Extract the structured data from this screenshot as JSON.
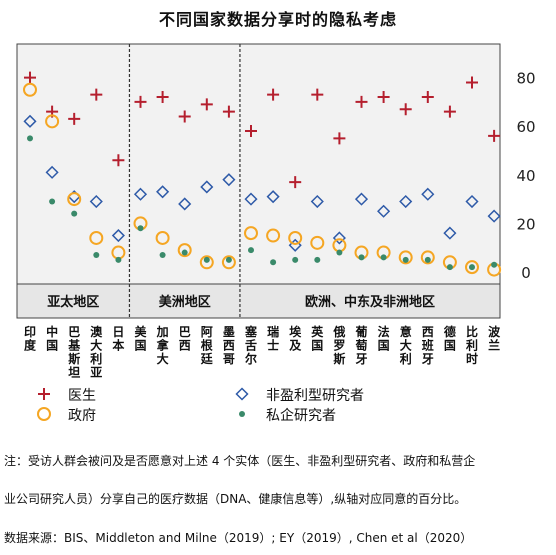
{
  "title": "不同国家数据分享时的隐私考虑",
  "chart_data": {
    "type": "scatter",
    "ylim": [
      0,
      90
    ],
    "yticks": [
      0,
      20,
      40,
      60,
      80
    ],
    "grid": false,
    "legend_position": "below",
    "categories": [
      "印度",
      "中国",
      "巴基斯坦",
      "澳大利亚",
      "日本",
      "美国",
      "加拿大",
      "巴西",
      "阿根廷",
      "墨西哥",
      "塞舌尔",
      "瑞士",
      "埃及",
      "英国",
      "俄罗斯",
      "葡萄牙",
      "法国",
      "意大利",
      "西班牙",
      "德国",
      "比利时",
      "波兰"
    ],
    "regions": [
      {
        "name": "亚太地区",
        "from": 0,
        "to": 4
      },
      {
        "name": "美洲地区",
        "from": 5,
        "to": 9
      },
      {
        "name": "欧洲、中东及非洲地区",
        "from": 10,
        "to": 21
      }
    ],
    "series": [
      {
        "name": "医生",
        "marker": "plus",
        "color": "#b51f2e",
        "values": [
          80,
          66,
          63,
          73,
          46,
          70,
          72,
          64,
          69,
          66,
          58,
          73,
          37,
          73,
          55,
          70,
          72,
          67,
          72,
          66,
          78,
          56
        ]
      },
      {
        "name": "非盈利型研究者",
        "marker": "diamond",
        "color": "#2e5aa8",
        "values": [
          62,
          41,
          31,
          29,
          15,
          32,
          33,
          28,
          35,
          38,
          30,
          31,
          11,
          29,
          14,
          30,
          25,
          29,
          32,
          16,
          29,
          23
        ]
      },
      {
        "name": "政府",
        "marker": "circle",
        "color": "#f5a623",
        "values": [
          75,
          62,
          30,
          14,
          8,
          20,
          14,
          9,
          4,
          4,
          16,
          15,
          14,
          12,
          11,
          8,
          8,
          6,
          6,
          4,
          2,
          1
        ]
      },
      {
        "name": "私企研究者",
        "marker": "dot",
        "color": "#3a8a6a",
        "values": [
          55,
          29,
          24,
          7,
          5,
          18,
          7,
          8,
          5,
          5,
          9,
          4,
          5,
          5,
          8,
          6,
          6,
          5,
          5,
          2,
          2,
          3
        ]
      }
    ]
  },
  "notes": {
    "line1": "注：受访人群会被问及是否愿意对上述 4 个实体（医生、非盈利型研究者、政府和私营企",
    "line2": "业公司研究人员）分享自己的医疗数据（DNA、健康信息等）,纵轴对应同意的百分比。",
    "source": "数据来源：BIS、Middleton and Milne（2019）; EY（2019）, Chen et al（2020）"
  }
}
